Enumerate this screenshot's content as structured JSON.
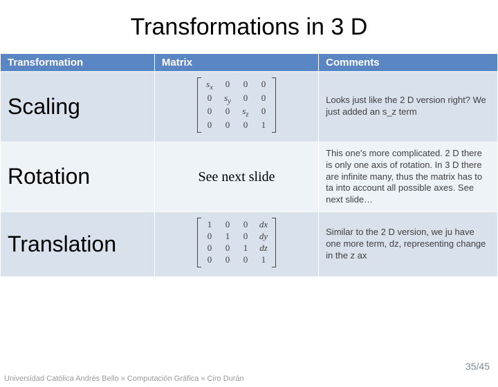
{
  "title": "Transformations in 3 D",
  "columns": [
    "Transformation",
    "Matrix",
    "Comments"
  ],
  "colors": {
    "header_bg": "#5b86c4",
    "header_text": "#ffffff",
    "row_odd_bg": "#d8e1ec",
    "row_even_bg": "#eef3f8",
    "title_color": "#000000",
    "body_text": "#404040",
    "greyed_text": "#b9b9b9",
    "footer_text": "#9a9a9a",
    "pagenum_text": "#7a8a9a"
  },
  "rows": {
    "scaling": {
      "name": "Scaling",
      "matrix": [
        [
          "s_x",
          "0",
          "0",
          "0"
        ],
        [
          "0",
          "s_y",
          "0",
          "0"
        ],
        [
          "0",
          "0",
          "s_z",
          "0"
        ],
        [
          "0",
          "0",
          "0",
          "1"
        ]
      ],
      "comment": "Looks just like the 2 D version right? We just added an s_z term"
    },
    "rotation": {
      "name": "Rotation",
      "matrix_text": "See next slide",
      "comment": "This one's more complicated. 2 D there is only one axis of rotation. In 3 D there are infinite many, thus the matrix has to ta into account all possible axes. See next slide…"
    },
    "translation": {
      "name": "Translation",
      "matrix": [
        [
          "1",
          "0",
          "0",
          "dx"
        ],
        [
          "0",
          "1",
          "0",
          "dy"
        ],
        [
          "0",
          "0",
          "1",
          "dz"
        ],
        [
          "0",
          "0",
          "0",
          "1"
        ]
      ],
      "comment": "Similar to the 2 D version, we ju have one more term, dz, representing change in the z ax"
    }
  },
  "footer": "Universidad Católica Andrés Bello » Computación Gráfica » Ciro Durán",
  "page": "35/45"
}
